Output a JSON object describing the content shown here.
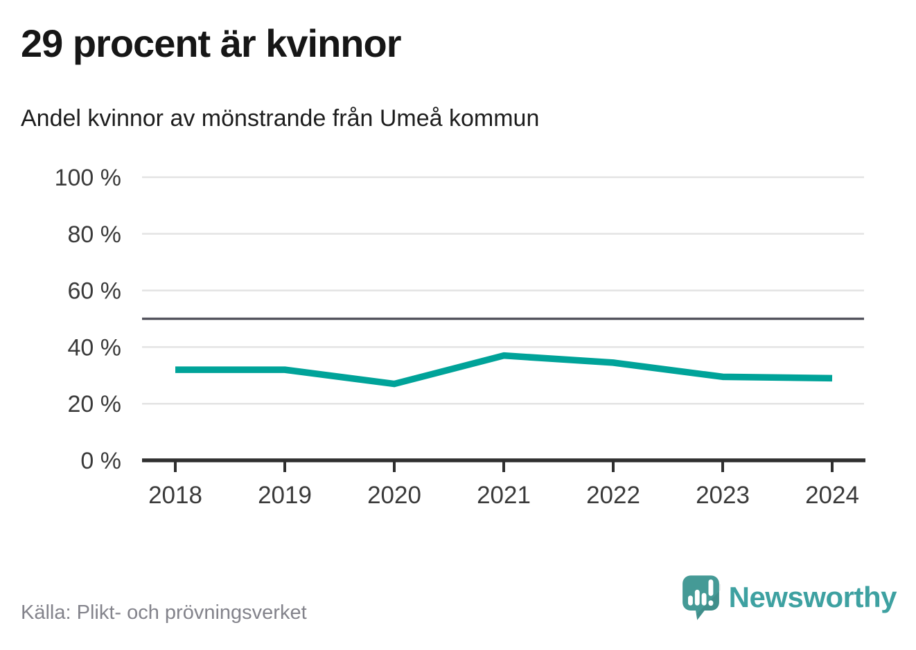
{
  "title": "29 procent är kvinnor",
  "subtitle": "Andel kvinnor av mönstrande från Umeå kommun",
  "source": "Källa: Plikt- och prövningsverket",
  "branding": {
    "name": "Newsworthy",
    "logo_icon": "newsworthy-speech-bubble-bar-chart-icon"
  },
  "colors": {
    "line": "#00a399",
    "grid": "#e3e3e3",
    "reference_line": "#54545e",
    "axis": "#2f2f2f",
    "title_text": "#161616",
    "tick_text": "#3a3a3a",
    "source_text": "#83838b",
    "brand_teal_icon": "#459a96",
    "brand_teal_text": "#3ea1a1"
  },
  "chart_data": {
    "type": "line",
    "title": "29 procent är kvinnor",
    "subtitle": "Andel kvinnor av mönstrande från Umeå kommun",
    "x": [
      2018,
      2019,
      2020,
      2021,
      2022,
      2023,
      2024
    ],
    "series": [
      {
        "name": "Andel kvinnor av mönstrande",
        "values": [
          32,
          32,
          27,
          37,
          34.5,
          29.5,
          29
        ]
      }
    ],
    "unit": "%",
    "ylim": [
      0,
      100
    ],
    "yticks": [
      0,
      20,
      40,
      60,
      80,
      100
    ],
    "ytick_labels": [
      "0 %",
      "20 %",
      "40 %",
      "60 %",
      "80 %",
      "100 %"
    ],
    "xtick_labels": [
      "2018",
      "2019",
      "2020",
      "2021",
      "2022",
      "2023",
      "2024"
    ],
    "reference_line_y": 50,
    "grid": true,
    "legend_position": "none"
  }
}
